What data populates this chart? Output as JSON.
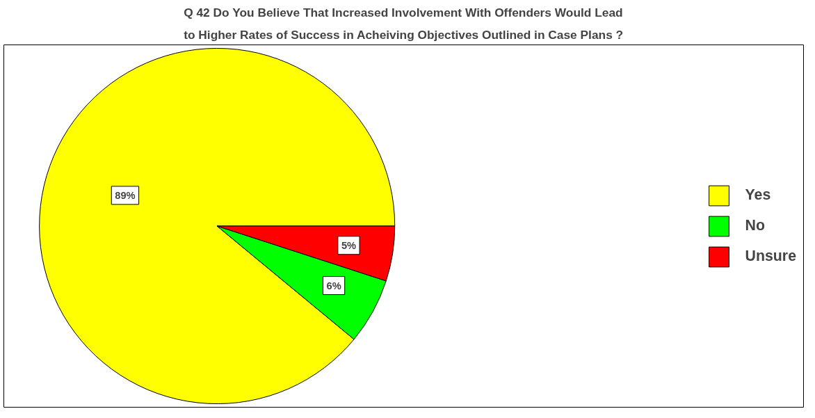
{
  "chart_data": {
    "type": "pie",
    "title": "Q 42 Do You Believe That Increased Involvement With Offenders Would Lead to Higher Rates of Success in Acheiving Objectives Outlined in Case Plans ?",
    "categories": [
      "Yes",
      "No",
      "Unsure"
    ],
    "values": [
      89,
      6,
      5
    ],
    "colors": [
      "#ffff00",
      "#00ff00",
      "#ff0000"
    ],
    "value_labels": [
      "89%",
      "6%",
      "5%"
    ],
    "legend": "right"
  }
}
